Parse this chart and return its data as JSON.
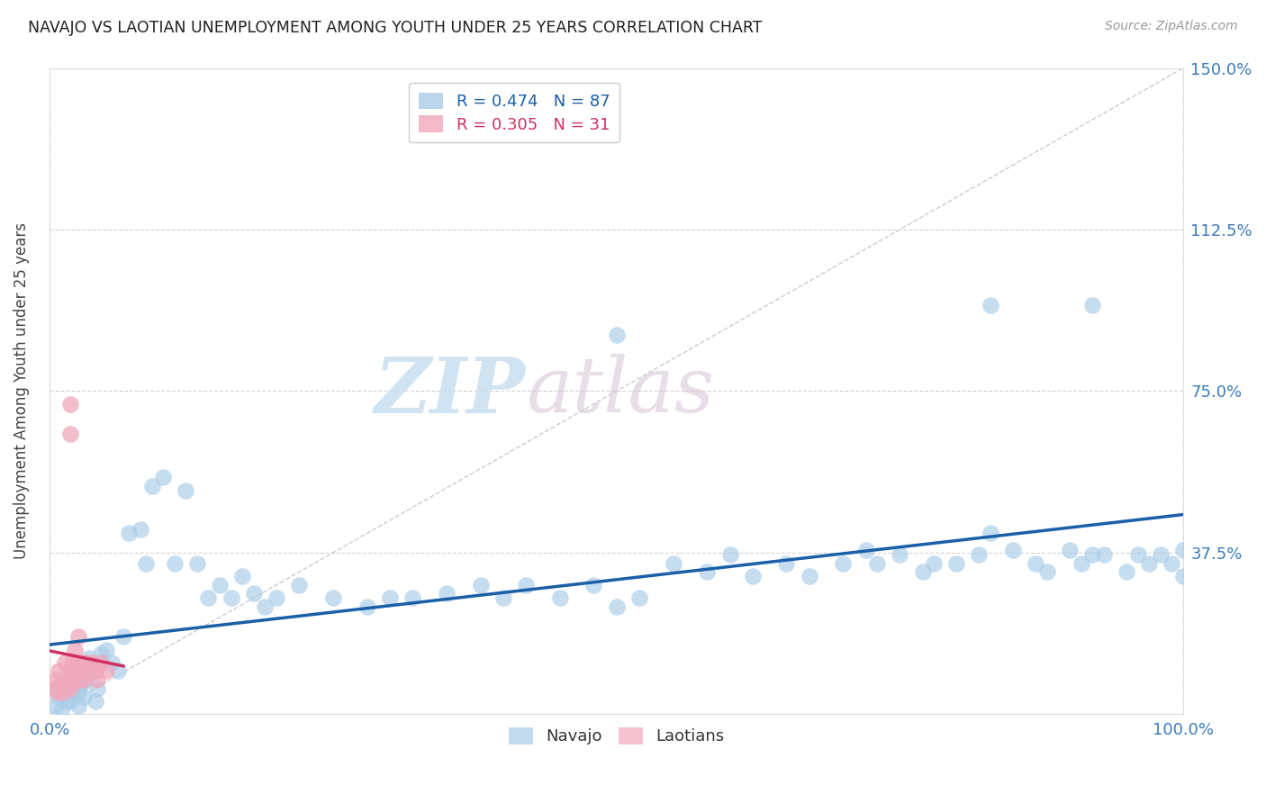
{
  "title": "NAVAJO VS LAOTIAN UNEMPLOYMENT AMONG YOUTH UNDER 25 YEARS CORRELATION CHART",
  "source": "Source: ZipAtlas.com",
  "xlim": [
    0.0,
    1.0
  ],
  "ylim": [
    0.0,
    1.5
  ],
  "ylabel": "Unemployment Among Youth under 25 years",
  "navajo_R": 0.474,
  "navajo_N": 87,
  "laotian_R": 0.305,
  "laotian_N": 31,
  "navajo_color": "#a8cce8",
  "laotian_color": "#f0a8bc",
  "navajo_line_color": "#1a5fa8",
  "laotian_line_color": "#d03060",
  "legend_labels": [
    "Navajo",
    "Laotians"
  ],
  "watermark_zip": "ZIP",
  "watermark_atlas": "atlas",
  "ytick_vals": [
    0.0,
    0.375,
    0.75,
    1.125,
    1.5
  ],
  "ytick_labels": [
    "",
    "37.5%",
    "75.0%",
    "112.5%",
    "150.0%"
  ],
  "xtick_vals": [
    0.0,
    1.0
  ],
  "xtick_labels": [
    "0.0%",
    "100.0%"
  ],
  "navajo_x": [
    0.005,
    0.008,
    0.01,
    0.012,
    0.015,
    0.018,
    0.02,
    0.022,
    0.025,
    0.028,
    0.03,
    0.032,
    0.035,
    0.04,
    0.042,
    0.045,
    0.05,
    0.055,
    0.06,
    0.065,
    0.07,
    0.08,
    0.085,
    0.09,
    0.1,
    0.11,
    0.12,
    0.13,
    0.14,
    0.15,
    0.16,
    0.17,
    0.18,
    0.19,
    0.2,
    0.22,
    0.25,
    0.28,
    0.3,
    0.32,
    0.35,
    0.38,
    0.4,
    0.42,
    0.45,
    0.48,
    0.5,
    0.52,
    0.55,
    0.58,
    0.6,
    0.62,
    0.65,
    0.67,
    0.7,
    0.72,
    0.73,
    0.75,
    0.77,
    0.78,
    0.8,
    0.82,
    0.83,
    0.85,
    0.87,
    0.88,
    0.9,
    0.91,
    0.92,
    0.93,
    0.95,
    0.96,
    0.97,
    0.98,
    0.99,
    1.0,
    1.0,
    0.5,
    0.83,
    0.92,
    0.005,
    0.01,
    0.015,
    0.02,
    0.025,
    0.03,
    0.04
  ],
  "navajo_y": [
    0.06,
    0.04,
    0.08,
    0.05,
    0.07,
    0.03,
    0.09,
    0.1,
    0.05,
    0.07,
    0.12,
    0.08,
    0.13,
    0.1,
    0.06,
    0.14,
    0.15,
    0.12,
    0.1,
    0.18,
    0.42,
    0.43,
    0.35,
    0.53,
    0.55,
    0.35,
    0.52,
    0.35,
    0.27,
    0.3,
    0.27,
    0.32,
    0.28,
    0.25,
    0.27,
    0.3,
    0.27,
    0.25,
    0.27,
    0.27,
    0.28,
    0.3,
    0.27,
    0.3,
    0.27,
    0.3,
    0.25,
    0.27,
    0.35,
    0.33,
    0.37,
    0.32,
    0.35,
    0.32,
    0.35,
    0.38,
    0.35,
    0.37,
    0.33,
    0.35,
    0.35,
    0.37,
    0.42,
    0.38,
    0.35,
    0.33,
    0.38,
    0.35,
    0.37,
    0.37,
    0.33,
    0.37,
    0.35,
    0.37,
    0.35,
    0.38,
    0.32,
    0.88,
    0.95,
    0.95,
    0.02,
    0.01,
    0.03,
    0.05,
    0.02,
    0.04,
    0.03
  ],
  "laotian_x": [
    0.003,
    0.005,
    0.007,
    0.008,
    0.01,
    0.012,
    0.013,
    0.015,
    0.017,
    0.018,
    0.02,
    0.02,
    0.02,
    0.022,
    0.022,
    0.023,
    0.025,
    0.025,
    0.027,
    0.028,
    0.03,
    0.03,
    0.032,
    0.035,
    0.037,
    0.04,
    0.042,
    0.045,
    0.05,
    0.018,
    0.018
  ],
  "laotian_y": [
    0.06,
    0.08,
    0.05,
    0.1,
    0.07,
    0.05,
    0.12,
    0.08,
    0.06,
    0.1,
    0.07,
    0.09,
    0.12,
    0.08,
    0.15,
    0.12,
    0.1,
    0.18,
    0.08,
    0.12,
    0.1,
    0.08,
    0.12,
    0.1,
    0.12,
    0.1,
    0.08,
    0.12,
    0.1,
    0.65,
    0.72
  ]
}
